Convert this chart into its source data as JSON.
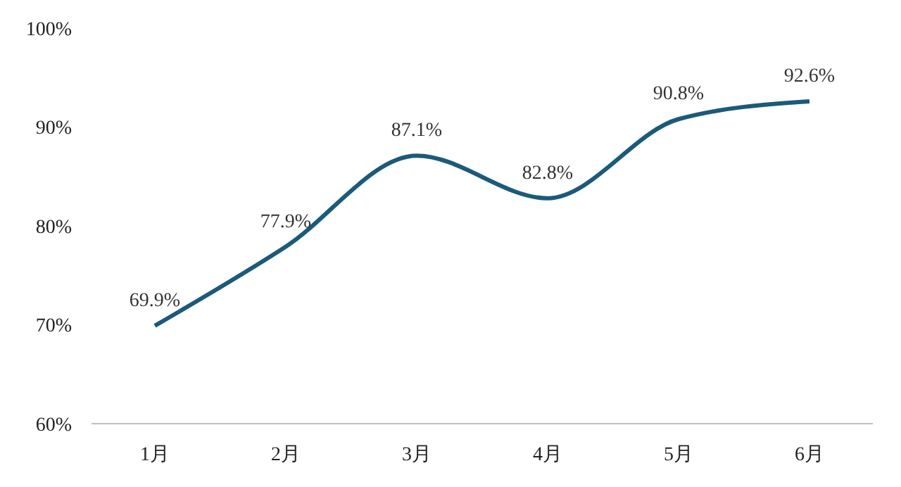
{
  "chart_data": {
    "type": "line",
    "categories": [
      "1月",
      "2月",
      "3月",
      "4月",
      "5月",
      "6月"
    ],
    "series": [
      {
        "color": "#1b5a7a",
        "values": [
          69.9,
          77.9,
          87.1,
          82.8,
          90.8,
          92.6
        ],
        "value_labels": [
          "69.9%",
          "77.9%",
          "87.1%",
          "82.8%",
          "90.8%",
          "92.6%"
        ]
      }
    ],
    "ylim": [
      60,
      100
    ],
    "yticks": [
      {
        "value": 60,
        "label": "60%"
      },
      {
        "value": 70,
        "label": "70%"
      },
      {
        "value": 80,
        "label": "80%"
      },
      {
        "value": 90,
        "label": "90%"
      },
      {
        "value": 100,
        "label": "100%"
      }
    ],
    "marker": "none",
    "line_style": "solid"
  }
}
